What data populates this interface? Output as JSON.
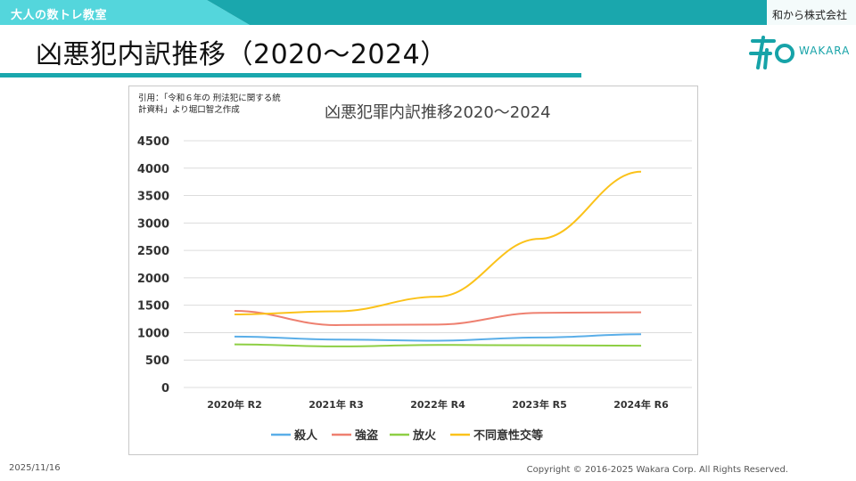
{
  "header": {
    "brand_label": "大人の数トレ教室",
    "company": "和から株式会社",
    "band_color": "#1aa7ad",
    "band_light_color": "#54d6dc"
  },
  "page": {
    "title": "凶悪犯内訳推移（2020～2024）"
  },
  "logo": {
    "text": "WAKARA",
    "color": "#17a3a8"
  },
  "citation": {
    "line1": "引用：「令和６年の 刑法犯に関する統",
    "line2": "計資料」より堀口智之作成"
  },
  "chart_data": {
    "type": "line",
    "title": "凶悪犯罪内訳推移2020～2024",
    "categories": [
      "2020年 R2",
      "2021年 R3",
      "2022年 R4",
      "2023年 R5",
      "2024年 R6"
    ],
    "ylim": [
      0,
      4500
    ],
    "yticks": [
      "0",
      "500",
      "1000",
      "1500",
      "2000",
      "2500",
      "3000",
      "3500",
      "4000",
      "4500"
    ],
    "grid": true,
    "legend_position": "bottom",
    "series": [
      {
        "name": "殺人",
        "color": "#5aaee8",
        "values": [
          929,
          874,
          853,
          912,
          970
        ]
      },
      {
        "name": "強盗",
        "color": "#ee8070",
        "values": [
          1397,
          1138,
          1148,
          1361,
          1371
        ]
      },
      {
        "name": "放火",
        "color": "#8ecf44",
        "values": [
          786,
          749,
          776,
          769,
          762
        ]
      },
      {
        "name": "不同意性交等",
        "color": "#fbc21a",
        "values": [
          1332,
          1388,
          1655,
          2711,
          3936
        ]
      }
    ]
  },
  "footer": {
    "date": "2025/11/16",
    "copyright": "Copyright © 2016-2025 Wakara Corp. All Rights Reserved."
  }
}
